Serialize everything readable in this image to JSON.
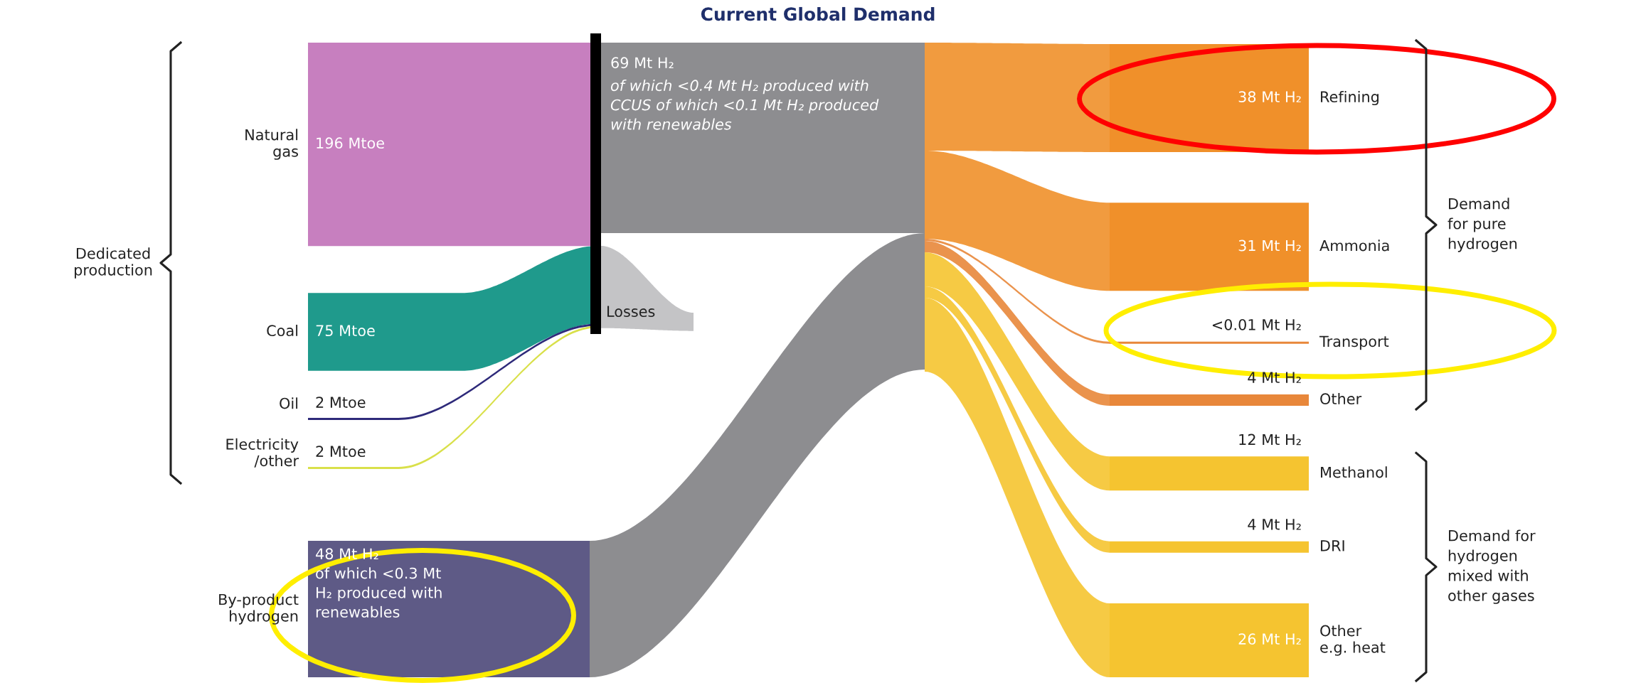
{
  "chart_data": {
    "type": "other",
    "title": "Current Global Demand",
    "categories": [
      "Natural\ngas",
      "Coal",
      "Oil",
      "Electricity\n/other",
      "By-product\nhydrogen",
      null,
      "Losses",
      "Refining",
      "Ammonia",
      "Transport",
      "Other",
      "Methanol",
      "DRI",
      "Other\ne.g. heat"
    ],
    "colors": [
      "#c77fbf",
      "#1f9a8c",
      "#2e2a7a",
      "#d9e04a",
      "#5e5a86",
      "#8d8d90",
      "#c4c4c6",
      "#f0902a",
      "#f0902a",
      "#e8873a",
      "#e8873a",
      "#f5c430",
      "#f5c430",
      "#f5c430"
    ],
    "series": [
      {
        "colors": [
          "#c77fbf",
          "#1f9a8c",
          "#2e2a7a",
          "#d9e04a",
          null,
          null,
          null,
          null,
          null,
          null,
          null,
          null,
          null,
          null
        ],
        "values": [
          196,
          75,
          2,
          2,
          null,
          null,
          null,
          null,
          null,
          null,
          null,
          null,
          null,
          null
        ],
        "value_labels": [
          "196 Mtoe",
          "75 Mtoe",
          "2 Mtoe",
          "2 Mtoe",
          null,
          null,
          null,
          null,
          null,
          null,
          null,
          null,
          null,
          null
        ]
      },
      {
        "values": [
          null,
          null,
          null,
          null,
          48,
          null,
          null,
          null,
          null,
          null,
          null,
          null,
          null,
          null
        ],
        "value_labels": [
          null,
          null,
          null,
          null,
          "48 Mt H₂\nof which <0.3 Mt\nH₂ produced with\nrenewables",
          null,
          null,
          null,
          null,
          null,
          null,
          null,
          null,
          null
        ]
      },
      {
        "values": [
          null,
          null,
          null,
          null,
          null,
          null,
          null,
          38,
          31,
          0.01,
          4,
          null,
          null,
          null
        ],
        "value_labels": [
          null,
          null,
          null,
          null,
          null,
          null,
          null,
          "38 Mt H₂",
          "31 Mt H₂",
          "<0.01 Mt H₂",
          "4 Mt H₂",
          null,
          null,
          null
        ]
      },
      {
        "values": [
          null,
          null,
          null,
          null,
          null,
          null,
          null,
          null,
          null,
          null,
          null,
          12,
          4,
          26
        ],
        "value_labels": [
          null,
          null,
          null,
          null,
          null,
          null,
          null,
          null,
          null,
          null,
          null,
          "12 Mt H₂",
          "4 Mt H₂",
          "26 Mt H₂"
        ]
      }
    ],
    "annotations": [
      "Dedicated\nproduction",
      "Demand\nfor pure\nhydrogen",
      "Demand for\nhydrogen\nmixed with\nother gases",
      "69 Mt H₂\nof which <0.4 Mt H₂ produced with\nCCUS of which <0.1 Mt H₂ produced\nwith renewables"
    ]
  }
}
